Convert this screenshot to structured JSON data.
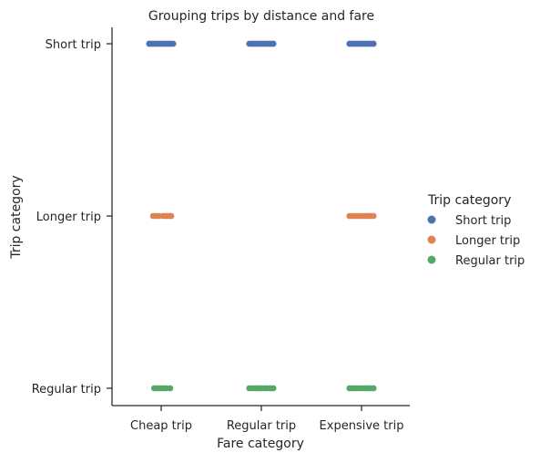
{
  "chart_data": {
    "type": "scatter",
    "title": "Grouping trips by distance and fare",
    "xlabel": "Fare category",
    "ylabel": "Trip category",
    "x_categories": [
      "Cheap trip",
      "Regular trip",
      "Expensive trip"
    ],
    "y_categories": [
      "Short trip",
      "Longer trip",
      "Regular trip"
    ],
    "legend": {
      "title": "Trip category",
      "placement": "right",
      "entries": [
        "Short trip",
        "Longer trip",
        "Regular trip"
      ]
    },
    "colors": {
      "Short trip": "#4c72b0",
      "Longer trip": "#dd8452",
      "Regular trip": "#55a868"
    },
    "grid": false,
    "series": [
      {
        "name": "Short trip",
        "category": "Short trip",
        "points": [
          {
            "x": "Cheap trip",
            "y": "Short trip",
            "jitter": [
              -0.12,
              -0.1,
              -0.08,
              -0.06,
              -0.04,
              -0.02,
              0,
              0.02,
              0.04,
              0.06,
              0.08,
              0.1,
              0.12
            ]
          },
          {
            "x": "Regular trip",
            "y": "Short trip",
            "jitter": [
              -0.12,
              -0.1,
              -0.08,
              -0.06,
              -0.04,
              -0.02,
              0,
              0.02,
              0.04,
              0.06,
              0.08,
              0.1,
              0.12
            ]
          },
          {
            "x": "Expensive trip",
            "y": "Short trip",
            "jitter": [
              -0.12,
              -0.1,
              -0.08,
              -0.06,
              -0.04,
              -0.02,
              0,
              0.02,
              0.04,
              0.06,
              0.08,
              0.1,
              0.12
            ]
          }
        ]
      },
      {
        "name": "Longer trip",
        "category": "Longer trip",
        "points": [
          {
            "x": "Cheap trip",
            "y": "Longer trip",
            "jitter": [
              -0.08,
              -0.05,
              -0.02,
              0.02,
              0.05,
              0.08,
              0.1
            ]
          },
          {
            "x": "Expensive trip",
            "y": "Longer trip",
            "jitter": [
              -0.12,
              -0.09,
              -0.06,
              -0.03,
              0,
              0.03,
              0.06,
              0.09,
              0.12
            ]
          }
        ]
      },
      {
        "name": "Regular trip",
        "category": "Regular trip",
        "points": [
          {
            "x": "Cheap trip",
            "y": "Regular trip",
            "jitter": [
              -0.07,
              -0.04,
              -0.01,
              0.02,
              0.05,
              0.09
            ]
          },
          {
            "x": "Regular trip",
            "y": "Regular trip",
            "jitter": [
              -0.12,
              -0.09,
              -0.06,
              -0.03,
              0,
              0.03,
              0.06,
              0.09,
              0.12
            ]
          },
          {
            "x": "Expensive trip",
            "y": "Regular trip",
            "jitter": [
              -0.12,
              -0.09,
              -0.06,
              -0.03,
              0,
              0.03,
              0.06,
              0.09,
              0.12
            ]
          }
        ]
      }
    ]
  }
}
